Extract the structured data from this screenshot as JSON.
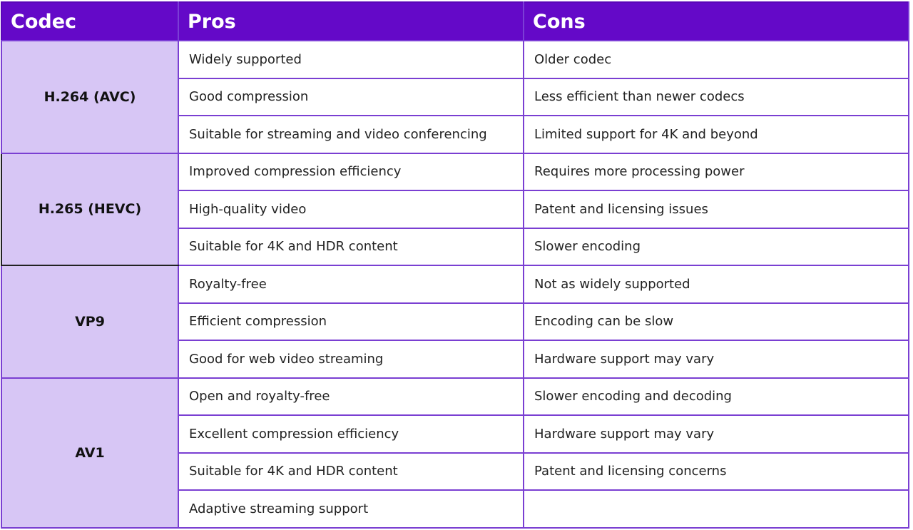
{
  "table": {
    "headers": {
      "codec": "Codec",
      "pros": "Pros",
      "cons": "Cons"
    },
    "groups": [
      {
        "codec": "H.264 (AVC)",
        "rows": [
          {
            "pro": "Widely supported",
            "con": "Older codec"
          },
          {
            "pro": "Good compression",
            "con": "Less efficient than newer codecs"
          },
          {
            "pro": "Suitable for streaming and video conferencing",
            "con": "Limited support for 4K and beyond"
          }
        ]
      },
      {
        "codec": "H.265 (HEVC)",
        "rows": [
          {
            "pro": "Improved compression efficiency",
            "con": "Requires more processing power"
          },
          {
            "pro": "High-quality video",
            "con": "Patent and licensing issues"
          },
          {
            "pro": "Suitable for 4K and HDR content",
            "con": "Slower encoding"
          }
        ]
      },
      {
        "codec": "VP9",
        "rows": [
          {
            "pro": "Royalty-free",
            "con": "Not as widely supported"
          },
          {
            "pro": "Efficient compression",
            "con": "Encoding can be slow"
          },
          {
            "pro": "Good for web video streaming",
            "con": "Hardware support may vary"
          }
        ]
      },
      {
        "codec": "AV1",
        "rows": [
          {
            "pro": "Open and royalty-free",
            "con": "Slower encoding and decoding"
          },
          {
            "pro": "Excellent compression efficiency",
            "con": "Hardware support may vary"
          },
          {
            "pro": "Suitable for 4K and HDR content",
            "con": "Patent and licensing concerns"
          },
          {
            "pro": "Adaptive streaming support",
            "con": ""
          }
        ]
      }
    ]
  },
  "colors": {
    "header_bg": "#6409c8",
    "codec_cell_bg": "#d7c6f5",
    "grid_line": "#7a3fd2"
  }
}
